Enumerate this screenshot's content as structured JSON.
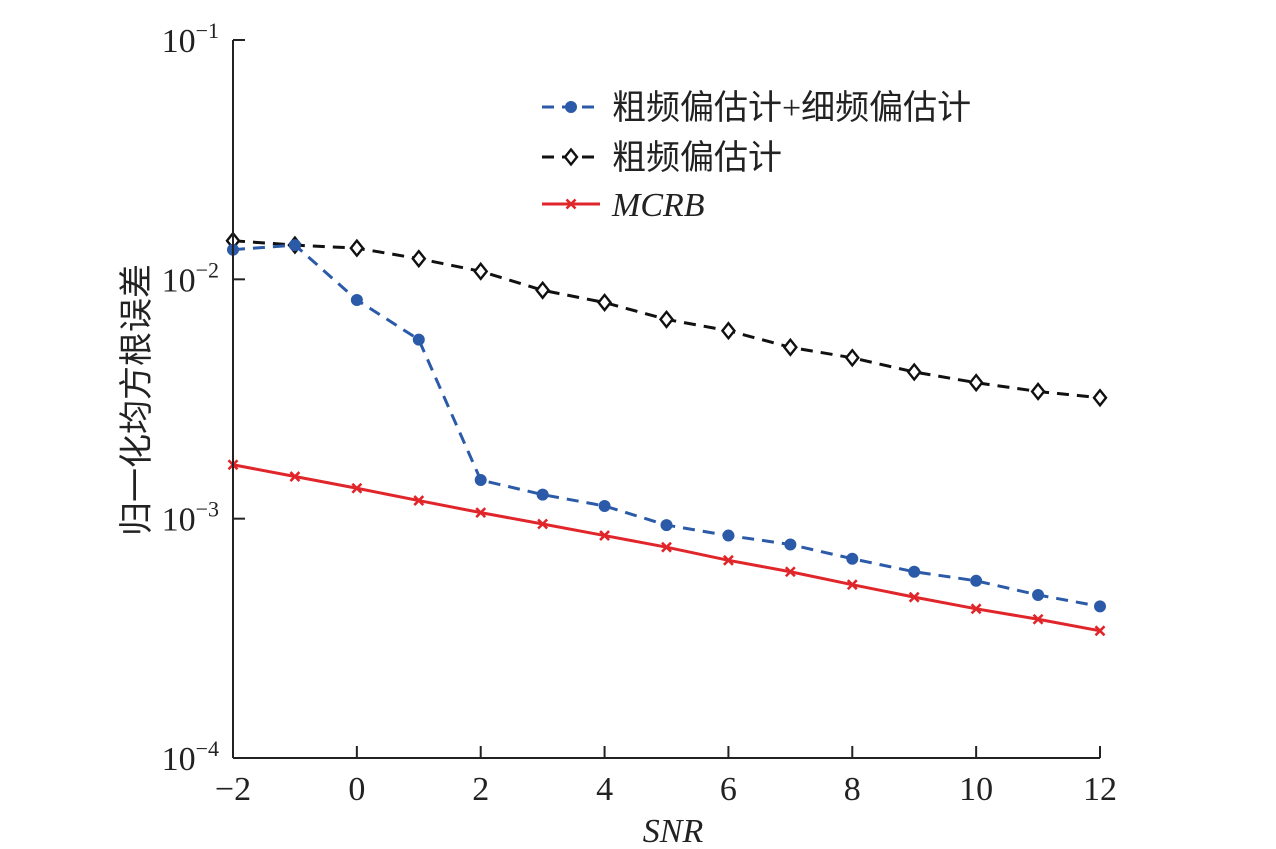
{
  "chart_data": {
    "type": "line",
    "title": "",
    "xlabel": "SNR",
    "ylabel": "归一化均方根误差",
    "xlim": [
      -2,
      12
    ],
    "ylim": [
      0.0001,
      0.1
    ],
    "yscale": "log",
    "grid": false,
    "legend_position": "top-right",
    "x_ticks": [
      "−2",
      "0",
      "2",
      "4",
      "6",
      "8",
      "10",
      "12"
    ],
    "y_ticks": [
      {
        "base": "10",
        "exp": "−1",
        "value": 0.1
      },
      {
        "base": "10",
        "exp": "−2",
        "value": 0.01
      },
      {
        "base": "10",
        "exp": "−3",
        "value": 0.001
      },
      {
        "base": "10",
        "exp": "−4",
        "value": 0.0001
      }
    ],
    "x": [
      -2,
      -1,
      0,
      1,
      2,
      3,
      4,
      5,
      6,
      7,
      8,
      9,
      10,
      11,
      12
    ],
    "series": [
      {
        "name": "粗频偏估计+细频偏估计",
        "color": "#2b5aa8",
        "linestyle": "dashed",
        "marker": "filled-circle",
        "values": [
          0.0133,
          0.0139,
          0.0082,
          0.0056,
          0.00145,
          0.00126,
          0.00113,
          0.00094,
          0.00085,
          0.00078,
          0.00068,
          0.0006,
          0.00055,
          0.00048,
          0.00043
        ]
      },
      {
        "name": "粗频偏估计",
        "color": "#111111",
        "linestyle": "dashed",
        "marker": "open-diamond",
        "values": [
          0.0145,
          0.0139,
          0.0135,
          0.0122,
          0.0108,
          0.009,
          0.008,
          0.0068,
          0.0061,
          0.0052,
          0.0047,
          0.0041,
          0.0037,
          0.0034,
          0.0032
        ]
      },
      {
        "name": "MCRB",
        "color": "#e0262b",
        "linestyle": "solid",
        "marker": "x",
        "values": [
          0.00168,
          0.0015,
          0.00134,
          0.00119,
          0.00106,
          0.00095,
          0.00085,
          0.00076,
          0.00067,
          0.0006,
          0.00053,
          0.00047,
          0.00042,
          0.00038,
          0.00034
        ]
      }
    ]
  }
}
